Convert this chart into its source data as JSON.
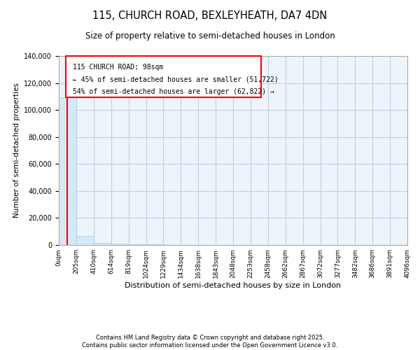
{
  "title": "115, CHURCH ROAD, BEXLEYHEATH, DA7 4DN",
  "subtitle": "Size of property relative to semi-detached houses in London",
  "xlabel": "Distribution of semi-detached houses by size in London",
  "ylabel": "Number of semi-detached properties",
  "property_size": 98,
  "property_label": "115 CHURCH ROAD: 98sqm",
  "annotation_line1": "← 45% of semi-detached houses are smaller (51,722)",
  "annotation_line2": "54% of semi-detached houses are larger (62,822) →",
  "footer_line1": "Contains HM Land Registry data © Crown copyright and database right 2025.",
  "footer_line2": "Contains public sector information licensed under the Open Government Licence v3.0.",
  "bar_color": "#d6e8f7",
  "bar_edge_color": "#a8c8e8",
  "plot_bg_color": "#eef4fb",
  "redline_color": "red",
  "annotation_box_color": "red",
  "ylim": [
    0,
    140000
  ],
  "bin_edges": [
    0,
    205,
    410,
    614,
    819,
    1024,
    1229,
    1434,
    1638,
    1843,
    2048,
    2253,
    2458,
    2662,
    2867,
    3072,
    3277,
    3482,
    3686,
    3891,
    4096
  ],
  "bin_labels": [
    "0sqm",
    "205sqm",
    "410sqm",
    "614sqm",
    "819sqm",
    "1024sqm",
    "1229sqm",
    "1434sqm",
    "1638sqm",
    "1843sqm",
    "2048sqm",
    "2253sqm",
    "2458sqm",
    "2662sqm",
    "2867sqm",
    "3072sqm",
    "3277sqm",
    "3482sqm",
    "3686sqm",
    "3891sqm",
    "4096sqm"
  ],
  "bar_heights": [
    109500,
    6500,
    1800,
    900,
    500,
    350,
    250,
    200,
    170,
    140,
    120,
    100,
    85,
    70,
    60,
    50,
    40,
    35,
    30,
    25
  ],
  "yticks": [
    0,
    20000,
    40000,
    60000,
    80000,
    100000,
    120000,
    140000
  ],
  "background_color": "#ffffff",
  "grid_color": "#c0cfe0"
}
